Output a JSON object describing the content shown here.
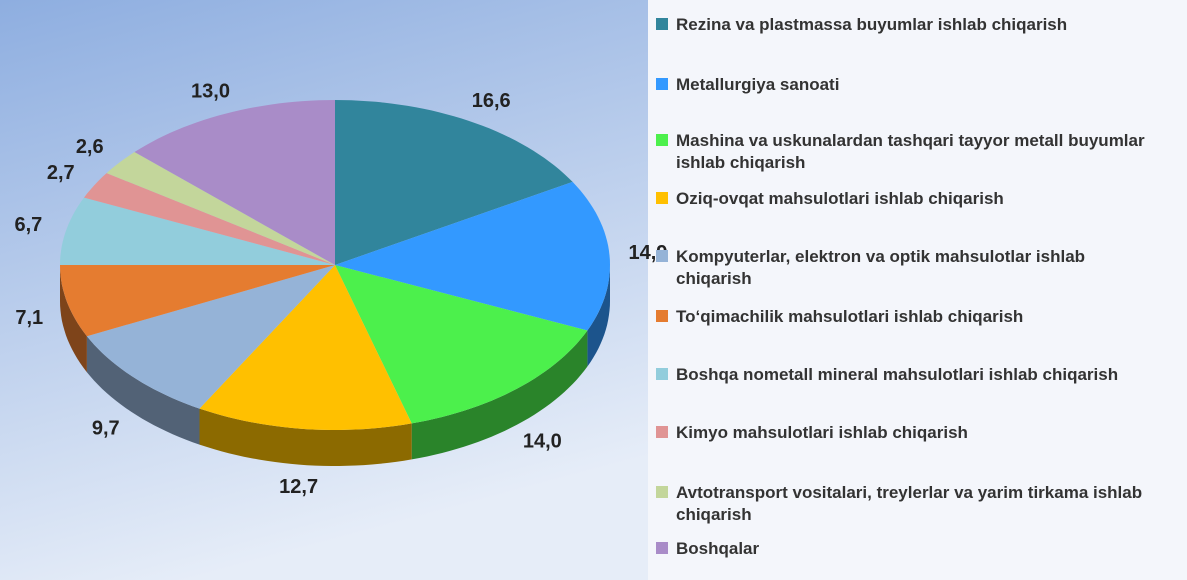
{
  "chart_data": {
    "type": "pie",
    "categories": [
      "Rezina va plastmassa buyumlar ishlab chiqarish",
      "Metallurgiya sanoati",
      "Mashina va uskunalardan tashqari tayyor metall buyumlar ishlab chiqarish",
      "Oziq-ovqat mahsulotlari ishlab chiqarish",
      "Kompyuterlar, elektron va optik mahsulotlar ishlab chiqarish",
      "To‘qimachilik mahsulotlari ishlab chiqarish",
      "Boshqa nometall mineral mahsulotlari ishlab chiqarish",
      "Kimyo mahsulotlari ishlab chiqarish",
      "Avtotransport vositalari, treylerlar va yarim tirkama ishlab chiqarish",
      "Boshqalar"
    ],
    "values": [
      16.6,
      14.9,
      14.0,
      12.7,
      9.7,
      7.1,
      6.7,
      2.7,
      2.6,
      13.0
    ],
    "value_labels": [
      "16,6",
      "14,9",
      "14,0",
      "12,7",
      "9,7",
      "7,1",
      "6,7",
      "2,7",
      "2,6",
      "13,0"
    ],
    "colors": [
      "#31859c",
      "#3399ff",
      "#4cf04c",
      "#ffc000",
      "#95b3d7",
      "#e57c30",
      "#92cddc",
      "#e09494",
      "#c3d69b",
      "#a98cc8"
    ]
  }
}
